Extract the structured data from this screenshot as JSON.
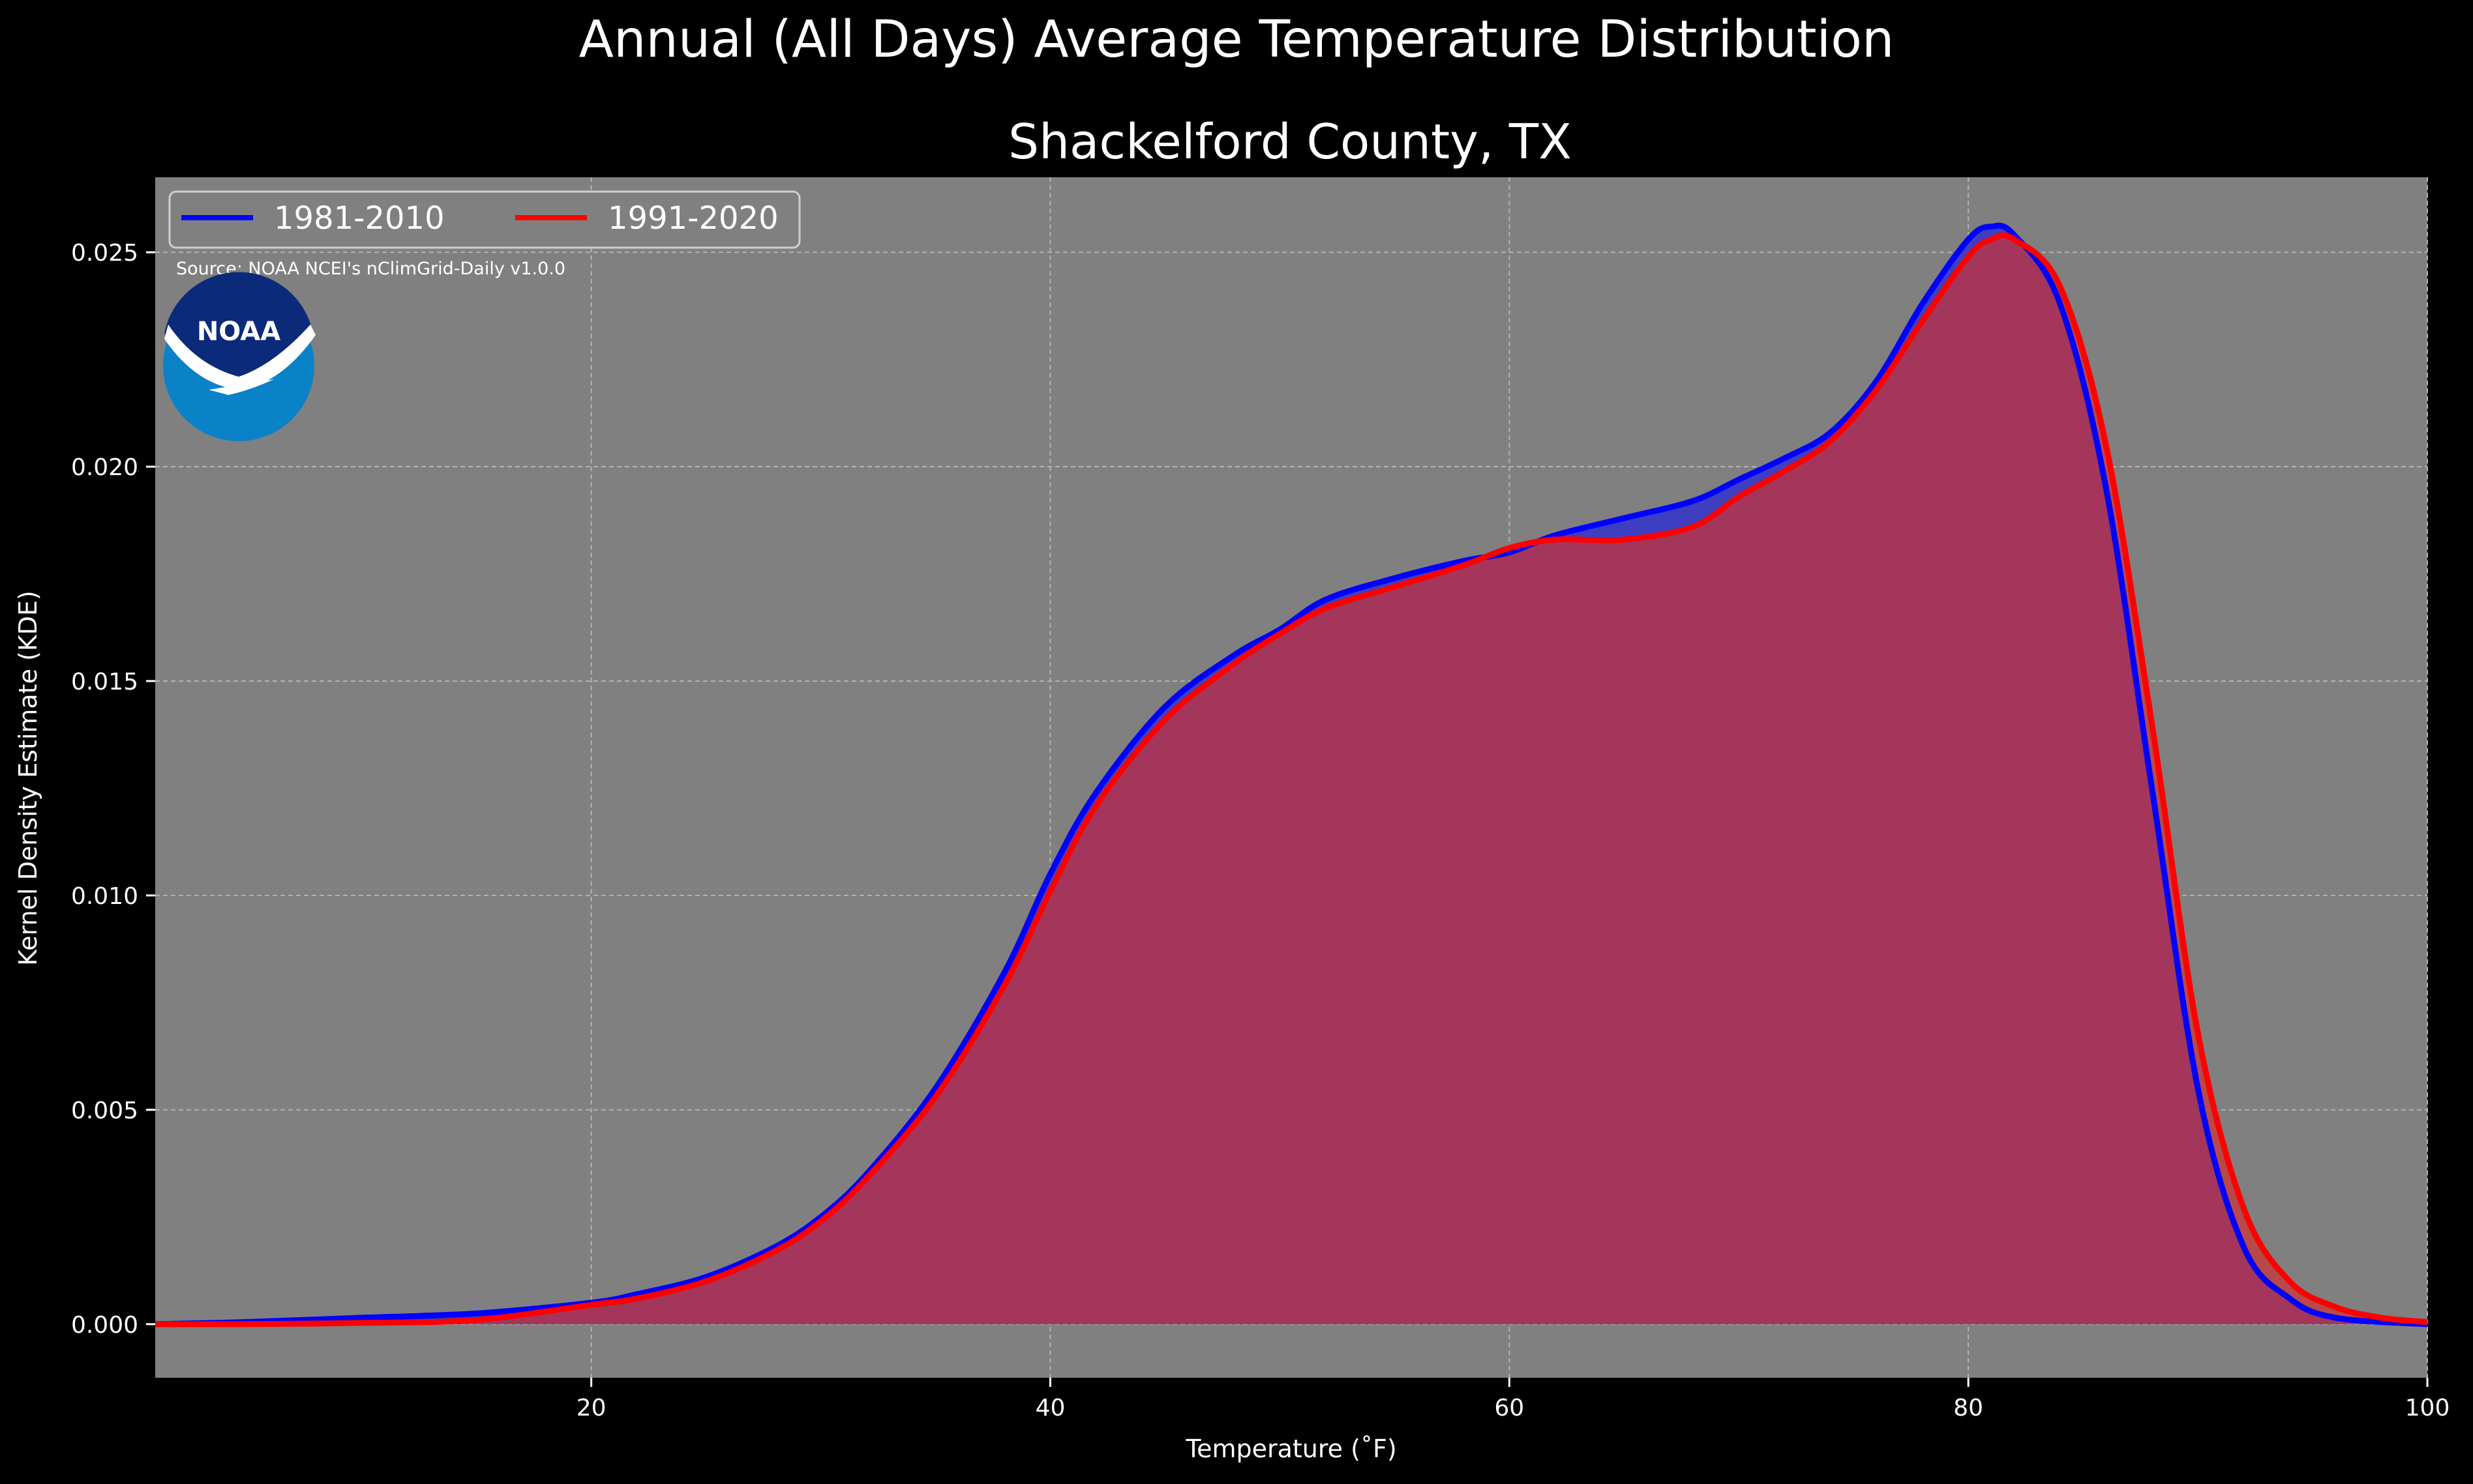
{
  "chart_data": {
    "type": "area",
    "title": "Annual (All Days) Average Temperature Distribution",
    "subtitle": "Shackelford County, TX",
    "xlabel": "Temperature (˚F)",
    "ylabel": "Kernel Density Estimate (KDE)",
    "xlim": [
      1,
      100
    ],
    "ylim": [
      -0.00125,
      0.02675
    ],
    "x_ticks": [
      20,
      40,
      60,
      80,
      100
    ],
    "x_tick_labels": [
      "20",
      "40",
      "60",
      "80",
      "100"
    ],
    "y_ticks": [
      0.0,
      0.005,
      0.01,
      0.015,
      0.02,
      0.025
    ],
    "y_tick_labels": [
      "0.000",
      "0.005",
      "0.010",
      "0.015",
      "0.020",
      "0.025"
    ],
    "grid": true,
    "legend_position": "top-left",
    "source_note": "Source: NOAA NCEI's nClimGrid-Daily v1.0.0",
    "logo_text": "NOAA",
    "background_color": "#000000",
    "plot_background_color": "#808080",
    "series": [
      {
        "name": "1981-2010",
        "color": "#0000ff",
        "fill_color": "#3333cc",
        "points": [
          [
            1,
            0.0
          ],
          [
            5,
            5e-05
          ],
          [
            10,
            0.00015
          ],
          [
            15,
            0.00025
          ],
          [
            20,
            0.0005
          ],
          [
            22,
            0.0007
          ],
          [
            25,
            0.0011
          ],
          [
            28,
            0.0018
          ],
          [
            30,
            0.0025
          ],
          [
            32,
            0.0035
          ],
          [
            35,
            0.0055
          ],
          [
            38,
            0.0082
          ],
          [
            40,
            0.0105
          ],
          [
            42,
            0.0124
          ],
          [
            45,
            0.0144
          ],
          [
            48,
            0.0156
          ],
          [
            50,
            0.0162
          ],
          [
            52,
            0.0169
          ],
          [
            55,
            0.0174
          ],
          [
            58,
            0.0178
          ],
          [
            60,
            0.018
          ],
          [
            62,
            0.0184
          ],
          [
            65,
            0.0188
          ],
          [
            68,
            0.0192
          ],
          [
            70,
            0.0197
          ],
          [
            72,
            0.0202
          ],
          [
            74,
            0.0208
          ],
          [
            76,
            0.022
          ],
          [
            78,
            0.0238
          ],
          [
            80,
            0.0253
          ],
          [
            81,
            0.0256
          ],
          [
            82,
            0.0254
          ],
          [
            84,
            0.0238
          ],
          [
            86,
            0.0195
          ],
          [
            88,
            0.0125
          ],
          [
            90,
            0.0055
          ],
          [
            92,
            0.0018
          ],
          [
            94,
            0.0006
          ],
          [
            96,
            0.00015
          ],
          [
            100,
            0.0
          ]
        ]
      },
      {
        "name": "1991-2020",
        "color": "#ff0000",
        "fill_color": "#cc3333",
        "points": [
          [
            1,
            0.0
          ],
          [
            5,
            0.0
          ],
          [
            10,
            3e-05
          ],
          [
            15,
            0.0001
          ],
          [
            20,
            0.00045
          ],
          [
            22,
            0.0006
          ],
          [
            25,
            0.001
          ],
          [
            28,
            0.0017
          ],
          [
            30,
            0.0024
          ],
          [
            32,
            0.0034
          ],
          [
            35,
            0.0053
          ],
          [
            38,
            0.0079
          ],
          [
            40,
            0.0101
          ],
          [
            42,
            0.0121
          ],
          [
            45,
            0.0141
          ],
          [
            48,
            0.0154
          ],
          [
            50,
            0.0161
          ],
          [
            52,
            0.0167
          ],
          [
            55,
            0.0172
          ],
          [
            58,
            0.0177
          ],
          [
            60,
            0.0181
          ],
          [
            62,
            0.0183
          ],
          [
            65,
            0.0183
          ],
          [
            68,
            0.0186
          ],
          [
            70,
            0.0193
          ],
          [
            72,
            0.0199
          ],
          [
            74,
            0.0206
          ],
          [
            76,
            0.0218
          ],
          [
            78,
            0.0234
          ],
          [
            80,
            0.0249
          ],
          [
            81,
            0.0253
          ],
          [
            82,
            0.0253
          ],
          [
            84,
            0.0242
          ],
          [
            86,
            0.0205
          ],
          [
            88,
            0.014
          ],
          [
            90,
            0.0068
          ],
          [
            92,
            0.0027
          ],
          [
            94,
            0.001
          ],
          [
            96,
            0.0004
          ],
          [
            98,
            0.00015
          ],
          [
            100,
            5e-05
          ]
        ]
      }
    ]
  }
}
